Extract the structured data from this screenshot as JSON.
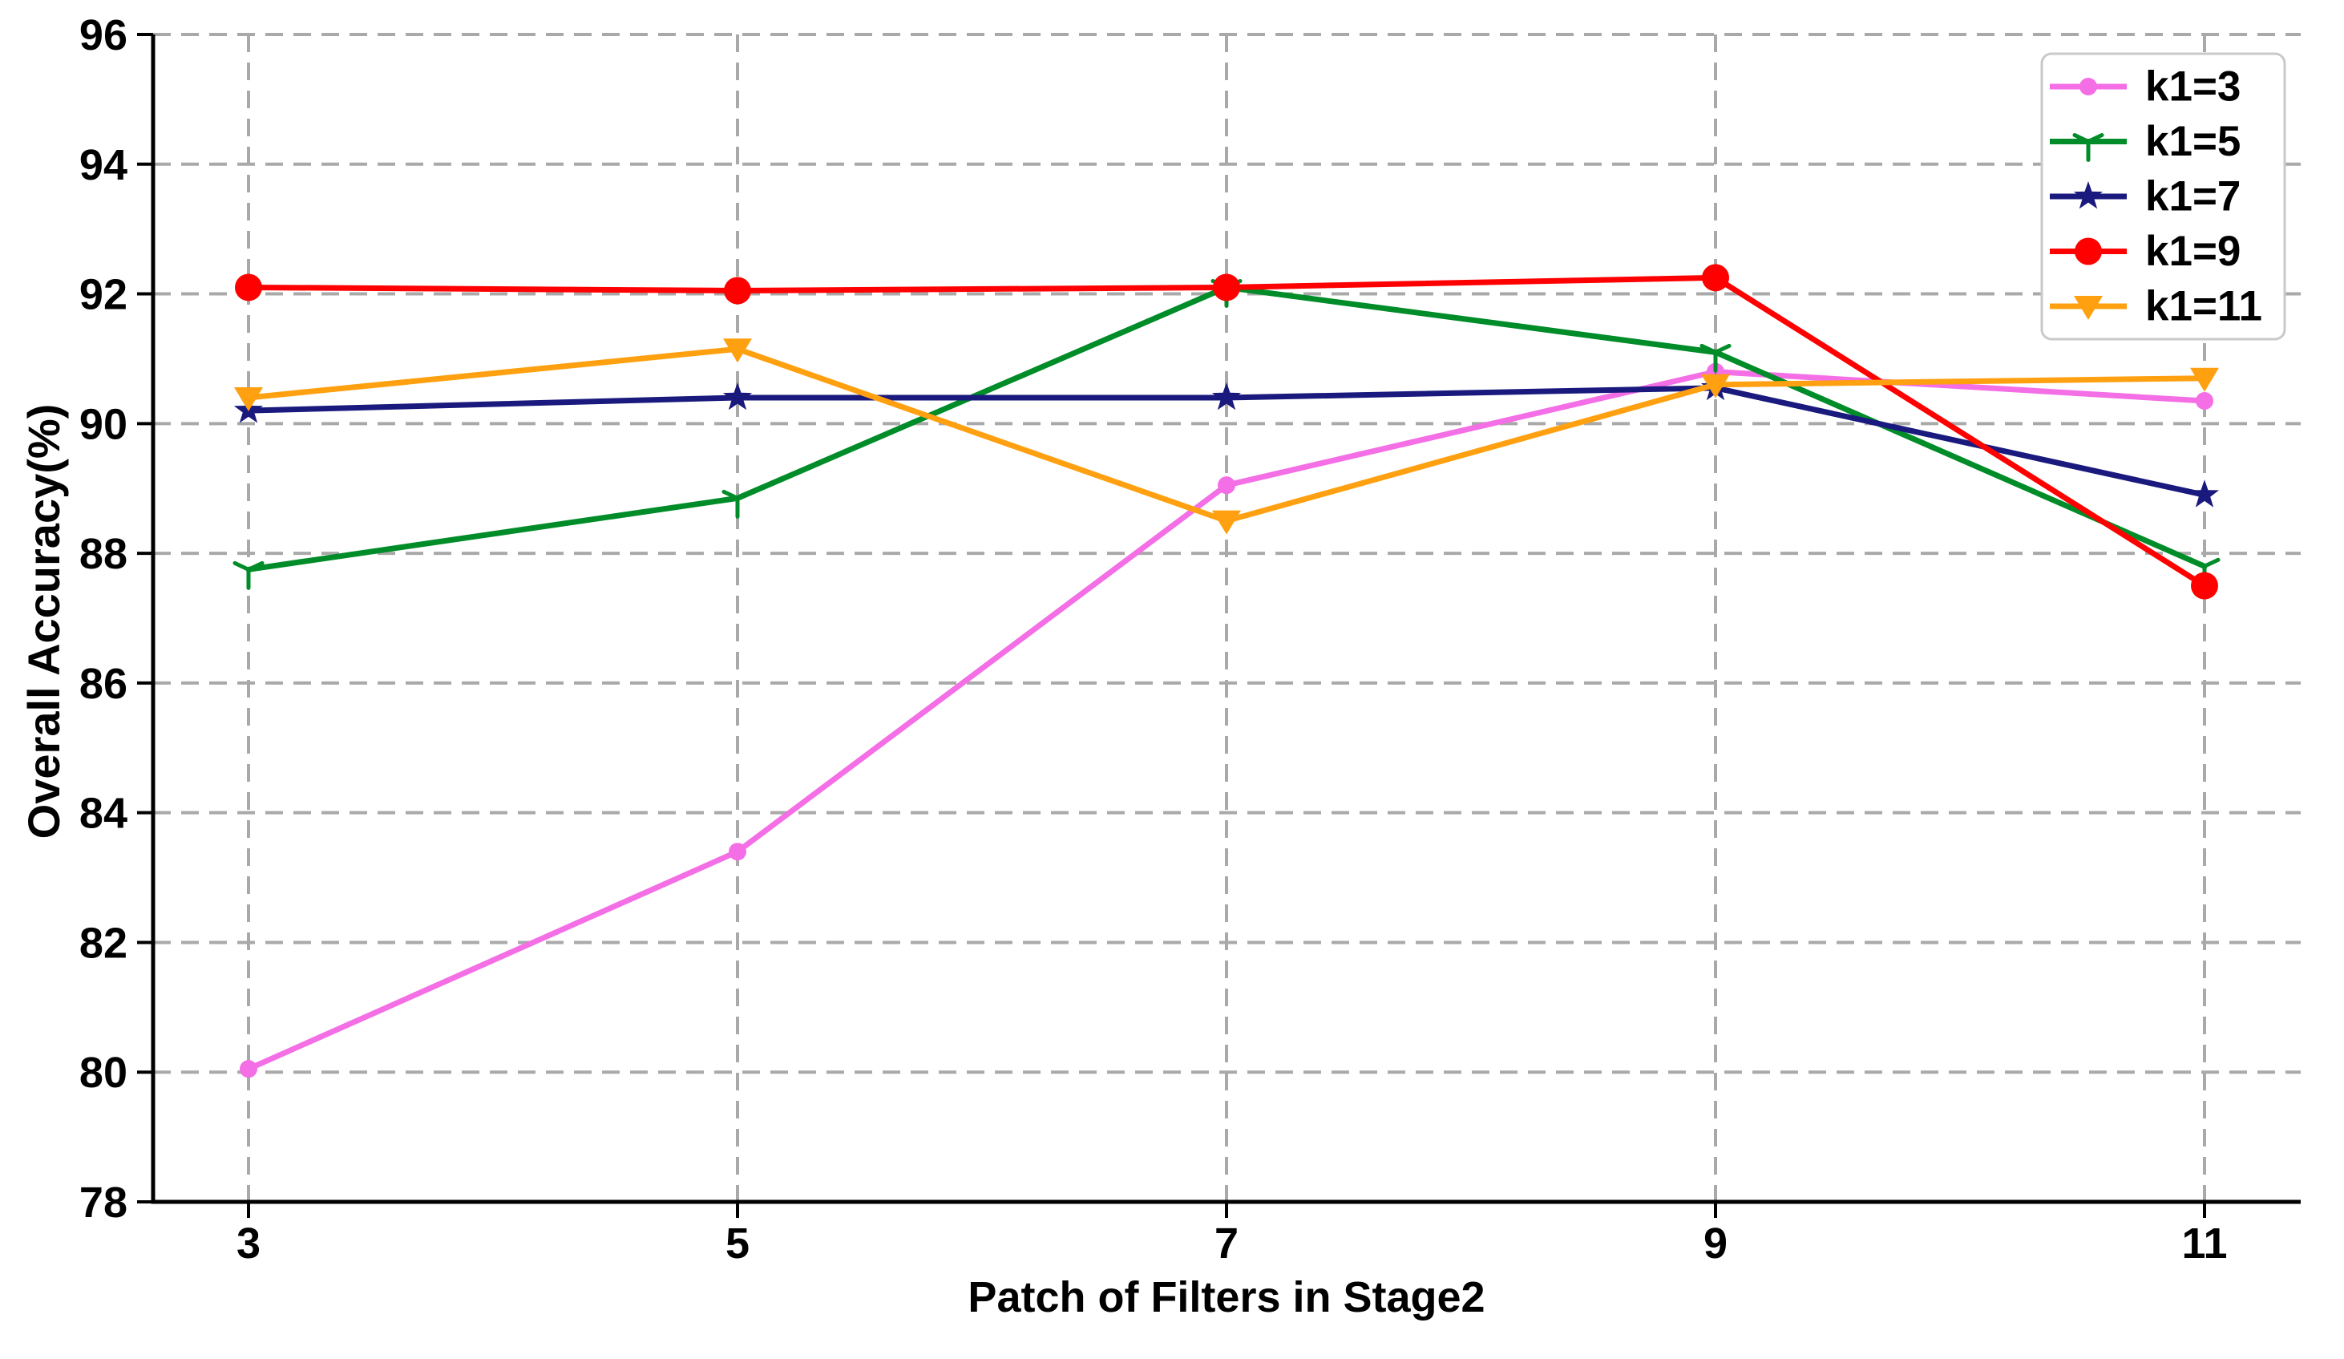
{
  "chart_data": {
    "type": "line",
    "title": "",
    "xlabel": "Patch of Filters in Stage2",
    "ylabel": "Overall Accuracy(%)",
    "x": [
      3,
      5,
      7,
      9,
      11
    ],
    "xticks": [
      3,
      5,
      7,
      9,
      11
    ],
    "yticks": [
      78,
      80,
      82,
      84,
      86,
      88,
      90,
      92,
      94,
      96
    ],
    "xlim": [
      2.6,
      11.4
    ],
    "ylim": [
      78,
      96
    ],
    "grid": "dashed-both-axes",
    "legend_position": "top-right",
    "series": [
      {
        "name": "k1=3",
        "color": "#f46ee6",
        "marker": "small-dot",
        "values": [
          80.05,
          83.4,
          89.05,
          90.8,
          90.35
        ]
      },
      {
        "name": "k1=5",
        "color": "#008c28",
        "marker": "tri-down",
        "values": [
          87.75,
          88.85,
          92.1,
          91.1,
          87.8
        ]
      },
      {
        "name": "k1=7",
        "color": "#1a1a7e",
        "marker": "star",
        "values": [
          90.2,
          90.4,
          90.4,
          90.55,
          88.9
        ]
      },
      {
        "name": "k1=9",
        "color": "#ff0000",
        "marker": "circle",
        "values": [
          92.1,
          92.05,
          92.1,
          92.25,
          87.5
        ]
      },
      {
        "name": "k1=11",
        "color": "#ffa010",
        "marker": "triangle-down",
        "values": [
          90.4,
          91.15,
          88.5,
          90.6,
          90.7
        ]
      }
    ]
  },
  "colors": {
    "background": "#ffffff",
    "grid": "#a9a9a9",
    "axis": "#000000",
    "tick_text": "#000000",
    "legend_bg": "#ffffff",
    "legend_border": "#c9c9c9"
  }
}
